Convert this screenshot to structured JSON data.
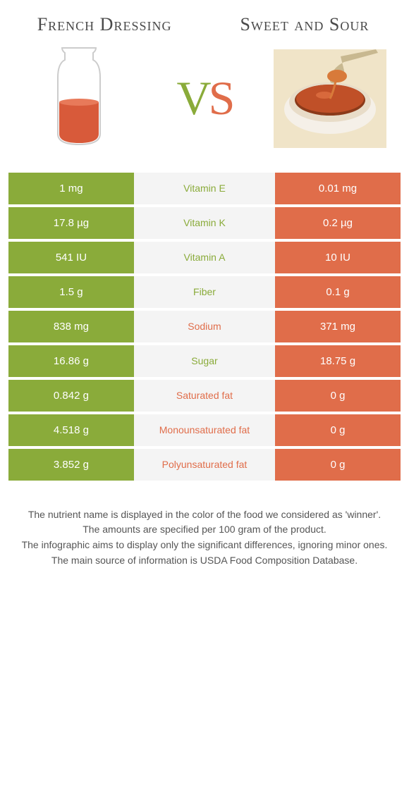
{
  "titles": {
    "left": "French Dressing",
    "right": "Sweet and Sour"
  },
  "vs": {
    "v": "V",
    "s": "S"
  },
  "colors": {
    "green": "#8aab3a",
    "orange": "#e06d4a",
    "mid_bg": "#f4f4f4",
    "text": "#4a4a4a"
  },
  "rows": [
    {
      "left": "1 mg",
      "mid": "Vitamin E",
      "right": "0.01 mg",
      "winner": "green"
    },
    {
      "left": "17.8 µg",
      "mid": "Vitamin K",
      "right": "0.2 µg",
      "winner": "green"
    },
    {
      "left": "541 IU",
      "mid": "Vitamin A",
      "right": "10 IU",
      "winner": "green"
    },
    {
      "left": "1.5 g",
      "mid": "Fiber",
      "right": "0.1 g",
      "winner": "green"
    },
    {
      "left": "838 mg",
      "mid": "Sodium",
      "right": "371 mg",
      "winner": "orange"
    },
    {
      "left": "16.86 g",
      "mid": "Sugar",
      "right": "18.75 g",
      "winner": "green"
    },
    {
      "left": "0.842 g",
      "mid": "Saturated fat",
      "right": "0 g",
      "winner": "orange"
    },
    {
      "left": "4.518 g",
      "mid": "Monounsaturated fat",
      "right": "0 g",
      "winner": "orange"
    },
    {
      "left": "3.852 g",
      "mid": "Polyunsaturated fat",
      "right": "0 g",
      "winner": "orange"
    }
  ],
  "footnotes": [
    "The nutrient name is displayed in the color of the food we considered as 'winner'.",
    "The amounts are specified per 100 gram of the product.",
    "The infographic aims to display only the significant differences, ignoring minor ones.",
    "The main source of information is USDA Food Composition Database."
  ]
}
